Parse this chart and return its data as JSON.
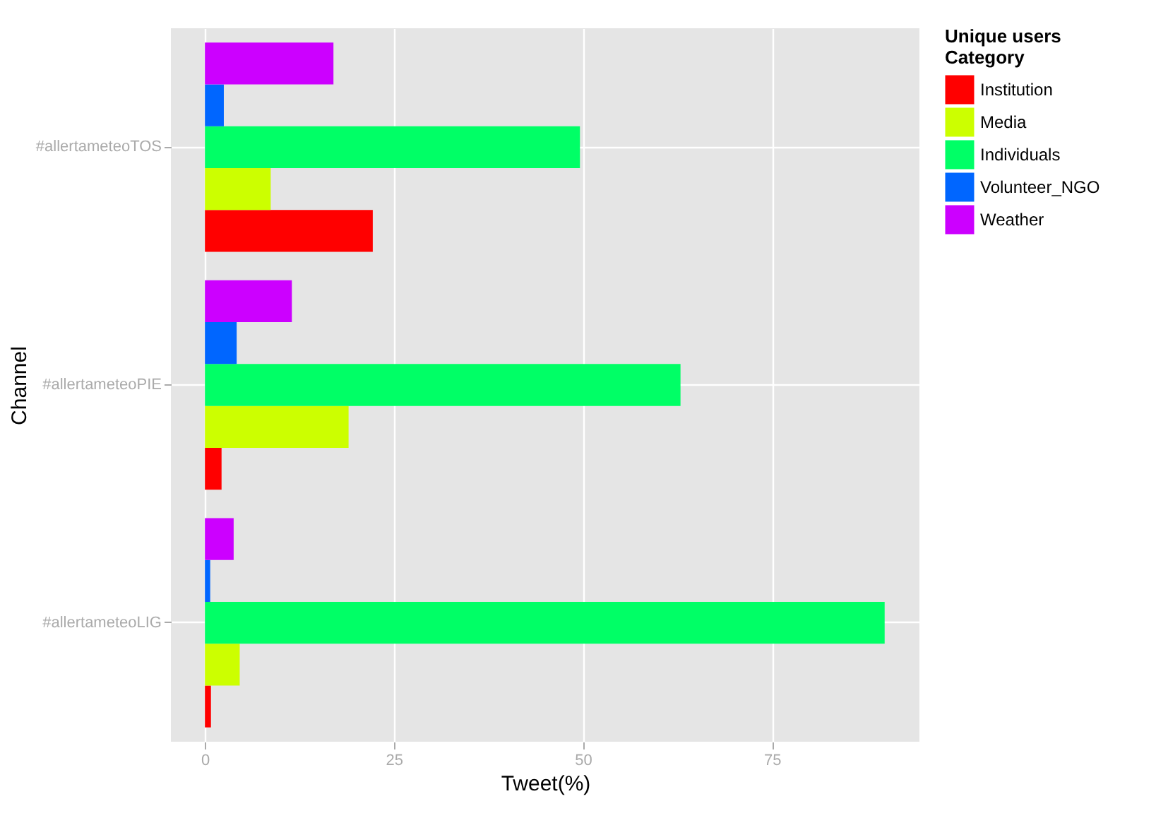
{
  "chart_data": {
    "type": "bar",
    "orientation": "horizontal",
    "xlabel": "Tweet(%)",
    "ylabel": "Channel",
    "legend_title": "Unique users\nCategory",
    "categories": [
      "#allertameteoTOS",
      "#allertameteoPIE",
      "#allertameteoLIG"
    ],
    "series": [
      {
        "name": "Institution",
        "color": "#ff0000",
        "values": [
          22.2,
          2.2,
          0.8
        ]
      },
      {
        "name": "Media",
        "color": "#ccff00",
        "values": [
          8.7,
          19.0,
          4.6
        ]
      },
      {
        "name": "Individuals",
        "color": "#00ff66",
        "values": [
          49.6,
          62.9,
          89.9
        ]
      },
      {
        "name": "Volunteer_NGO",
        "color": "#0066ff",
        "values": [
          2.5,
          4.2,
          0.7
        ]
      },
      {
        "name": "Weather",
        "color": "#cc00ff",
        "values": [
          17.0,
          11.5,
          3.8
        ]
      }
    ],
    "xlim": [
      -4.5,
      94.5
    ],
    "xticks": [
      0,
      25,
      50,
      75
    ],
    "grid": true,
    "legend": "right"
  }
}
